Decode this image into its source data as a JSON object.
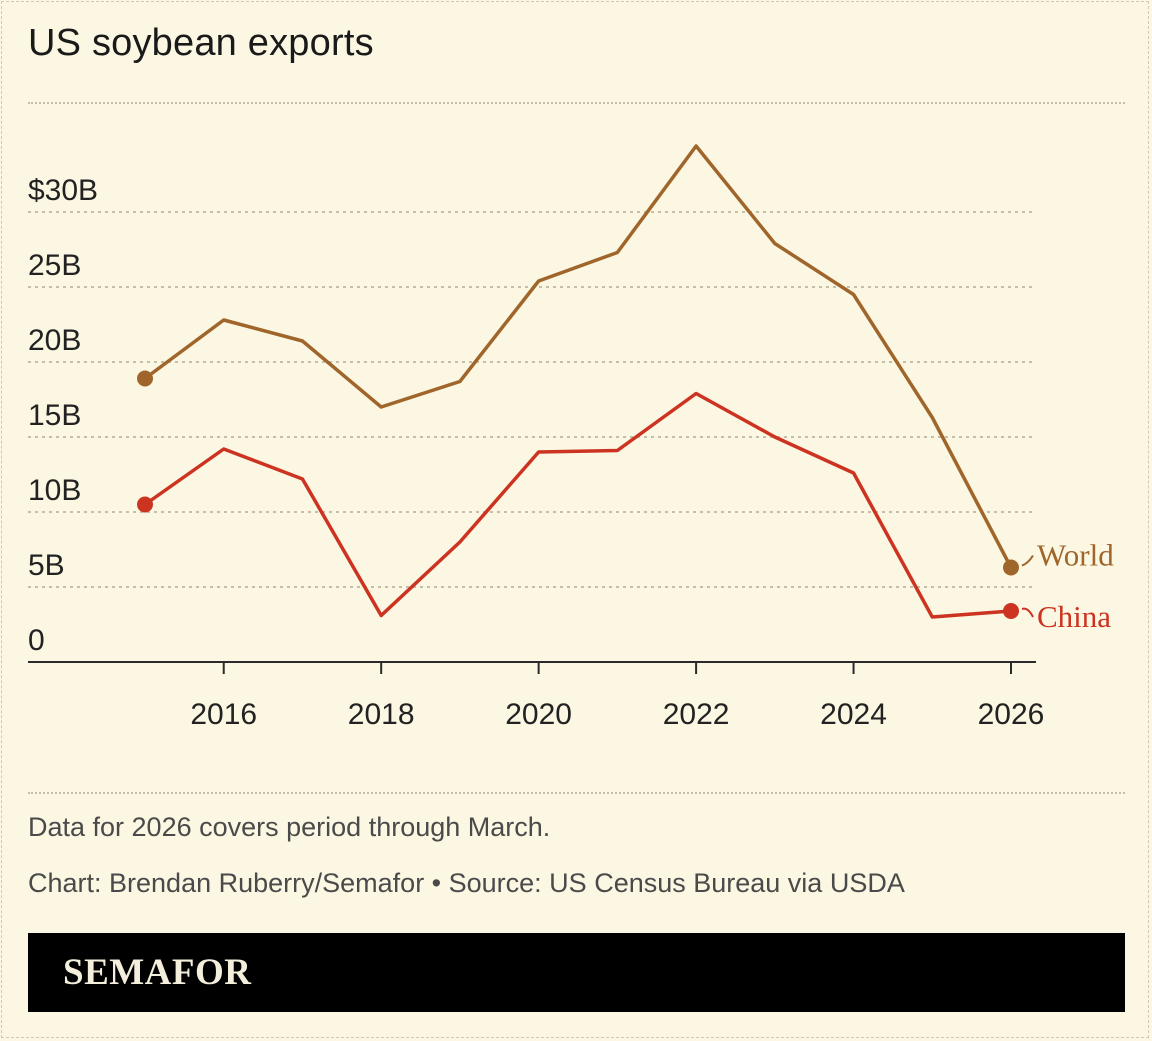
{
  "title": "US soybean exports",
  "note": "Data for 2026 covers period through March.",
  "credit": "Chart: Brendan Ruberry/Semafor • Source: US Census Bureau via USDA",
  "brand": "SEMAFOR",
  "colors": {
    "background": "#fbf7e3",
    "world": "#a0652a",
    "china": "#cc3320",
    "grid": "#c4bfa8"
  },
  "chart_data": {
    "type": "line",
    "title": "US soybean exports",
    "x": [
      2015,
      2016,
      2017,
      2018,
      2019,
      2020,
      2021,
      2022,
      2023,
      2024,
      2025,
      2026
    ],
    "series": [
      {
        "name": "World",
        "values": [
          18.9,
          22.8,
          21.4,
          17.0,
          18.7,
          25.4,
          27.3,
          34.4,
          27.9,
          24.5,
          16.3,
          6.3
        ]
      },
      {
        "name": "China",
        "values": [
          10.5,
          14.2,
          12.2,
          3.1,
          8.0,
          14.0,
          14.1,
          17.9,
          15.0,
          12.6,
          3.0,
          3.4
        ]
      }
    ],
    "xticks": [
      2016,
      2018,
      2020,
      2022,
      2024,
      2026
    ],
    "xtick_labels": [
      "2016",
      "2018",
      "2020",
      "2022",
      "2024",
      "2026"
    ],
    "yticks": [
      0,
      5,
      10,
      15,
      20,
      25,
      30
    ],
    "ytick_labels": [
      "0",
      "5B",
      "10B",
      "15B",
      "20B",
      "25B",
      "$30B"
    ],
    "xlim": [
      2014.25,
      2026.3
    ],
    "ylim": [
      0,
      35
    ],
    "grid": true,
    "legend": "labels at line ends"
  }
}
